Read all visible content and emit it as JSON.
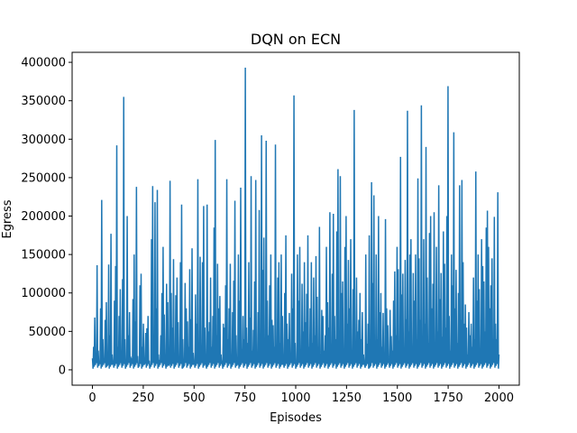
{
  "chart_data": {
    "type": "line",
    "title": "DQN on ECN",
    "xlabel": "Episodes",
    "ylabel": "Egress",
    "xlim": [
      -100,
      2100
    ],
    "ylim": [
      -20000,
      413000
    ],
    "xticks": [
      0,
      250,
      500,
      750,
      1000,
      1250,
      1500,
      1750,
      2000
    ],
    "xtick_labels": [
      "0",
      "250",
      "500",
      "750",
      "1000",
      "1250",
      "1500",
      "1750",
      "2000"
    ],
    "yticks": [
      0,
      50000,
      100000,
      150000,
      200000,
      250000,
      300000,
      350000,
      400000
    ],
    "ytick_labels": [
      "0",
      "50000",
      "100000",
      "150000",
      "200000",
      "250000",
      "300000",
      "350000",
      "400000"
    ],
    "grid": false,
    "color": "#1f77b4",
    "series": [
      {
        "name": "",
        "x_start": 0,
        "x_step": 2,
        "values": [
          15000,
          30000,
          68000,
          12000,
          136000,
          25000,
          9000,
          80000,
          221000,
          40000,
          13000,
          65000,
          88000,
          6000,
          137000,
          45000,
          177000,
          20000,
          10000,
          90000,
          135000,
          292000,
          30000,
          70000,
          105000,
          12000,
          118000,
          355000,
          40000,
          8000,
          200000,
          45000,
          75000,
          17000,
          15000,
          92000,
          150000,
          63000,
          238000,
          18000,
          5000,
          110000,
          125000,
          30000,
          60000,
          8000,
          48000,
          54000,
          70000,
          12000,
          7000,
          170000,
          239000,
          40000,
          218000,
          80000,
          234000,
          20000,
          13000,
          45000,
          100000,
          160000,
          72000,
          10000,
          112000,
          88000,
          6000,
          246000,
          100000,
          55000,
          144000,
          20000,
          97000,
          120000,
          62000,
          15000,
          140000,
          215000,
          40000,
          5000,
          113000,
          80000,
          63000,
          30000,
          131000,
          66000,
          158000,
          22000,
          10000,
          98000,
          60000,
          248000,
          35000,
          147000,
          18000,
          140000,
          213000,
          55000,
          7000,
          215000,
          50000,
          62000,
          120000,
          30000,
          70000,
          185000,
          299000,
          45000,
          138000,
          80000,
          96000,
          20000,
          12000,
          60000,
          55000,
          110000,
          248000,
          40000,
          80000,
          138000,
          18000,
          75000,
          116000,
          220000,
          45000,
          8000,
          150000,
          90000,
          237000,
          27000,
          70000,
          40000,
          393000,
          55000,
          35000,
          140000,
          68000,
          252000,
          25000,
          52000,
          115000,
          247000,
          11000,
          75000,
          208000,
          40000,
          305000,
          130000,
          172000,
          20000,
          298000,
          90000,
          45000,
          110000,
          150000,
          65000,
          58000,
          30000,
          293000,
          22000,
          120000,
          140000,
          35000,
          150000,
          70000,
          10000,
          100000,
          175000,
          60000,
          40000,
          74000,
          20000,
          125000,
          80000,
          357000,
          35000,
          8000,
          150000,
          90000,
          160000,
          25000,
          112000,
          50000,
          140000,
          62000,
          99000,
          175000,
          30000,
          80000,
          140000,
          35000,
          120000,
          45000,
          148000,
          95000,
          30000,
          186000,
          10000,
          78000,
          70000,
          25000,
          45000,
          160000,
          88000,
          55000,
          205000,
          20000,
          125000,
          203000,
          70000,
          40000,
          180000,
          261000,
          30000,
          252000,
          100000,
          115000,
          20000,
          160000,
          200000,
          60000,
          143000,
          80000,
          170000,
          25000,
          105000,
          338000,
          25000,
          120000,
          50000,
          65000,
          100000,
          40000,
          75000,
          20000,
          6000,
          150000,
          34000,
          60000,
          175000,
          5000,
          244000,
          113000,
          227000,
          18000,
          150000,
          40000,
          200000,
          75000,
          100000,
          30000,
          74000,
          20000,
          196000,
          80000,
          58000,
          12000,
          78000,
          44000,
          25000,
          90000,
          128000,
          45000,
          160000,
          131000,
          38000,
          277000,
          98000,
          125000,
          20000,
          143000,
          66000,
          337000,
          50000,
          150000,
          170000,
          30000,
          126000,
          90000,
          150000,
          40000,
          249000,
          145000,
          65000,
          344000,
          25000,
          170000,
          60000,
          290000,
          120000,
          35000,
          178000,
          200000,
          80000,
          112000,
          205000,
          27000,
          160000,
          50000,
          240000,
          92000,
          126000,
          43000,
          180000,
          138000,
          55000,
          200000,
          369000,
          70000,
          25000,
          150000,
          110000,
          309000,
          80000,
          130000,
          35000,
          100000,
          240000,
          65000,
          247000,
          140000,
          60000,
          85000,
          55000,
          20000,
          75000,
          45000,
          60000,
          30000,
          120000,
          40000,
          258000,
          90000,
          150000,
          105000,
          18000,
          170000,
          135000,
          115000,
          50000,
          185000,
          207000,
          160000,
          80000,
          110000,
          145000,
          40000,
          199000,
          60000,
          40000,
          231000,
          20000
        ]
      }
    ]
  }
}
